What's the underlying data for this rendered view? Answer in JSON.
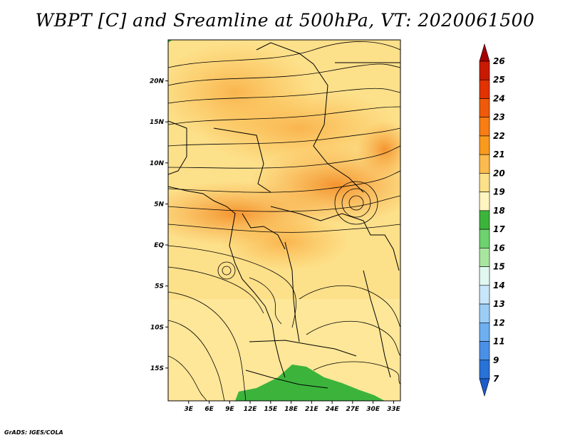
{
  "title": "WBPT [C] and Sreamline at 500hPa, VT: 2020061500",
  "credit": "GrADS: IGES/COLA",
  "map": {
    "lat_ticks": [
      "20N",
      "15N",
      "10N",
      "5N",
      "EQ",
      "5S",
      "10S",
      "15S"
    ],
    "lon_ticks": [
      "3E",
      "6E",
      "9E",
      "12E",
      "15E",
      "18E",
      "21E",
      "24E",
      "27E",
      "30E",
      "33E"
    ],
    "lon_range": [
      0,
      34
    ],
    "lat_range": [
      -19,
      25
    ]
  },
  "colorbar": {
    "levels": [
      "26",
      "25",
      "24",
      "23",
      "22",
      "21",
      "20",
      "19",
      "18",
      "17",
      "16",
      "15",
      "14",
      "13",
      "12",
      "11",
      "9",
      "7"
    ],
    "colors": [
      "#a50000",
      "#c81a00",
      "#e13200",
      "#ef5a0a",
      "#f77d14",
      "#f99a1e",
      "#fbbb4e",
      "#fde08a",
      "#fff5c0",
      "#3cb43c",
      "#6ed26e",
      "#a8e6a0",
      "#e1f8f0",
      "#c8e6fa",
      "#9ccdf5",
      "#6eaff0",
      "#4a90e6",
      "#2872d8",
      "#1e5ccd"
    ]
  }
}
